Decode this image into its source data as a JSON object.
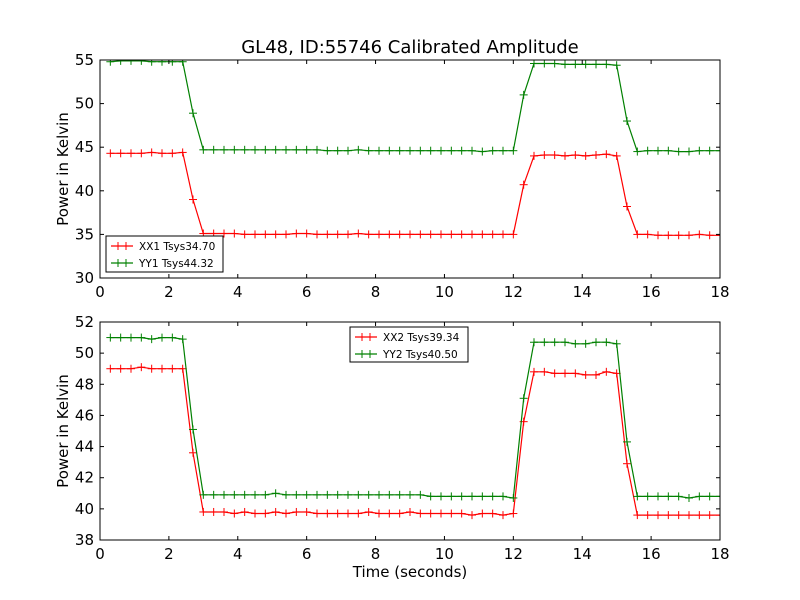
{
  "figure": {
    "title": "GL48, ID:55746 Calibrated Amplitude"
  },
  "chart_data": [
    {
      "type": "line",
      "title": "GL48, ID:55746 Calibrated Amplitude",
      "xlabel": "",
      "ylabel": "Power in Kelvin",
      "xlim": [
        0,
        18
      ],
      "ylim": [
        30,
        55
      ],
      "xticks": [
        0,
        2,
        4,
        6,
        8,
        10,
        12,
        14,
        16,
        18
      ],
      "yticks": [
        30,
        35,
        40,
        45,
        50,
        55
      ],
      "grid": false,
      "legend_position": "lower-left",
      "x": [
        0.3,
        0.6,
        0.9,
        1.2,
        1.5,
        1.8,
        2.1,
        2.4,
        2.7,
        3.0,
        3.3,
        3.6,
        3.9,
        4.2,
        4.5,
        4.8,
        5.1,
        5.4,
        5.7,
        6.0,
        6.3,
        6.6,
        6.9,
        7.2,
        7.5,
        7.8,
        8.1,
        8.4,
        8.7,
        9.0,
        9.3,
        9.6,
        9.9,
        10.2,
        10.5,
        10.8,
        11.1,
        11.4,
        11.7,
        12.0,
        12.3,
        12.6,
        12.9,
        13.2,
        13.5,
        13.8,
        14.1,
        14.4,
        14.7,
        15.0,
        15.3,
        15.6,
        15.9,
        16.2,
        16.5,
        16.8,
        17.1,
        17.4,
        17.7,
        18.0
      ],
      "series": [
        {
          "name": "XX1 Tsys34.70",
          "color": "#ff0000",
          "values": [
            44.3,
            44.3,
            44.3,
            44.3,
            44.4,
            44.3,
            44.3,
            44.4,
            39.0,
            35.1,
            35.1,
            35.1,
            35.1,
            35.0,
            35.0,
            35.0,
            35.0,
            35.0,
            35.1,
            35.1,
            35.0,
            35.0,
            35.0,
            35.0,
            35.1,
            35.0,
            35.0,
            35.0,
            35.0,
            35.0,
            35.0,
            35.0,
            35.0,
            35.0,
            35.0,
            35.0,
            35.0,
            35.0,
            35.0,
            35.0,
            40.7,
            44.0,
            44.1,
            44.1,
            44.0,
            44.1,
            44.0,
            44.1,
            44.2,
            44.0,
            38.2,
            35.0,
            35.0,
            34.9,
            34.9,
            34.9,
            34.9,
            35.0,
            34.9,
            34.9
          ]
        },
        {
          "name": "YY1 Tsys44.32",
          "color": "#008000",
          "values": [
            54.8,
            54.9,
            54.9,
            54.9,
            54.8,
            54.8,
            54.8,
            54.8,
            48.9,
            44.7,
            44.7,
            44.7,
            44.7,
            44.7,
            44.7,
            44.7,
            44.7,
            44.7,
            44.7,
            44.7,
            44.7,
            44.6,
            44.6,
            44.6,
            44.7,
            44.6,
            44.6,
            44.6,
            44.6,
            44.6,
            44.6,
            44.6,
            44.6,
            44.6,
            44.6,
            44.6,
            44.5,
            44.6,
            44.6,
            44.6,
            51.0,
            54.6,
            54.6,
            54.6,
            54.5,
            54.5,
            54.5,
            54.5,
            54.5,
            54.4,
            48.0,
            44.5,
            44.6,
            44.6,
            44.6,
            44.5,
            44.5,
            44.6,
            44.6,
            44.6
          ]
        }
      ]
    },
    {
      "type": "line",
      "title": "",
      "xlabel": "Time (seconds)",
      "ylabel": "Power in Kelvin",
      "xlim": [
        0,
        18
      ],
      "ylim": [
        38,
        52
      ],
      "xticks": [
        0,
        2,
        4,
        6,
        8,
        10,
        12,
        14,
        16,
        18
      ],
      "yticks": [
        38,
        40,
        42,
        44,
        46,
        48,
        50,
        52
      ],
      "grid": false,
      "legend_position": "upper-center",
      "x": [
        0.3,
        0.6,
        0.9,
        1.2,
        1.5,
        1.8,
        2.1,
        2.4,
        2.7,
        3.0,
        3.3,
        3.6,
        3.9,
        4.2,
        4.5,
        4.8,
        5.1,
        5.4,
        5.7,
        6.0,
        6.3,
        6.6,
        6.9,
        7.2,
        7.5,
        7.8,
        8.1,
        8.4,
        8.7,
        9.0,
        9.3,
        9.6,
        9.9,
        10.2,
        10.5,
        10.8,
        11.1,
        11.4,
        11.7,
        12.0,
        12.3,
        12.6,
        12.9,
        13.2,
        13.5,
        13.8,
        14.1,
        14.4,
        14.7,
        15.0,
        15.3,
        15.6,
        15.9,
        16.2,
        16.5,
        16.8,
        17.1,
        17.4,
        17.7,
        18.0
      ],
      "series": [
        {
          "name": "XX2 Tsys39.34",
          "color": "#ff0000",
          "values": [
            49.0,
            49.0,
            49.0,
            49.1,
            49.0,
            49.0,
            49.0,
            49.0,
            43.6,
            39.8,
            39.8,
            39.8,
            39.7,
            39.8,
            39.7,
            39.7,
            39.8,
            39.7,
            39.8,
            39.8,
            39.7,
            39.7,
            39.7,
            39.7,
            39.7,
            39.8,
            39.7,
            39.7,
            39.7,
            39.8,
            39.7,
            39.7,
            39.7,
            39.7,
            39.7,
            39.6,
            39.7,
            39.7,
            39.6,
            39.7,
            45.6,
            48.8,
            48.8,
            48.7,
            48.7,
            48.7,
            48.6,
            48.6,
            48.8,
            48.7,
            42.9,
            39.6,
            39.6,
            39.6,
            39.6,
            39.6,
            39.6,
            39.6,
            39.6,
            39.6
          ]
        },
        {
          "name": "YY2 Tsys40.50",
          "color": "#008000",
          "values": [
            51.0,
            51.0,
            51.0,
            51.0,
            50.9,
            51.0,
            51.0,
            50.9,
            45.1,
            40.9,
            40.9,
            40.9,
            40.9,
            40.9,
            40.9,
            40.9,
            41.0,
            40.9,
            40.9,
            40.9,
            40.9,
            40.9,
            40.9,
            40.9,
            40.9,
            40.9,
            40.9,
            40.9,
            40.9,
            40.9,
            40.9,
            40.8,
            40.8,
            40.8,
            40.8,
            40.8,
            40.8,
            40.8,
            40.8,
            40.7,
            47.1,
            50.7,
            50.7,
            50.7,
            50.7,
            50.6,
            50.6,
            50.7,
            50.7,
            50.6,
            44.3,
            40.8,
            40.8,
            40.8,
            40.8,
            40.8,
            40.7,
            40.8,
            40.8,
            40.8
          ]
        }
      ]
    }
  ]
}
